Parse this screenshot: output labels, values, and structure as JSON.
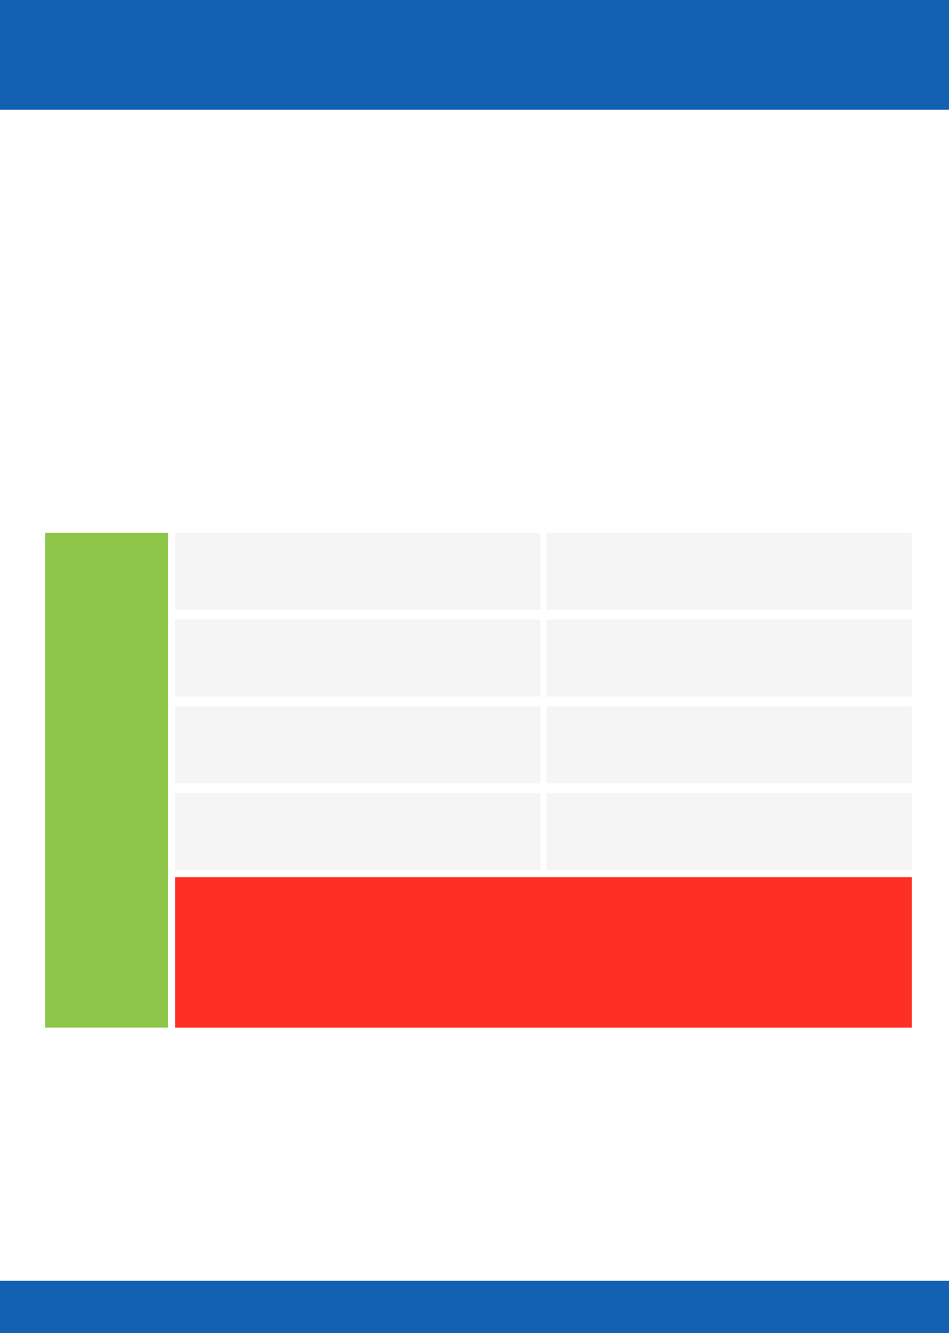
{
  "colors": {
    "header_band": "#1261b3",
    "footer_band": "#1261b3",
    "side_block": "#8dc649",
    "grid_cell": "#f5f5f5",
    "bottom_block": "#ff2f23",
    "page_background": "#ffffff"
  },
  "grid": {
    "rows": 4,
    "columns": 2
  }
}
